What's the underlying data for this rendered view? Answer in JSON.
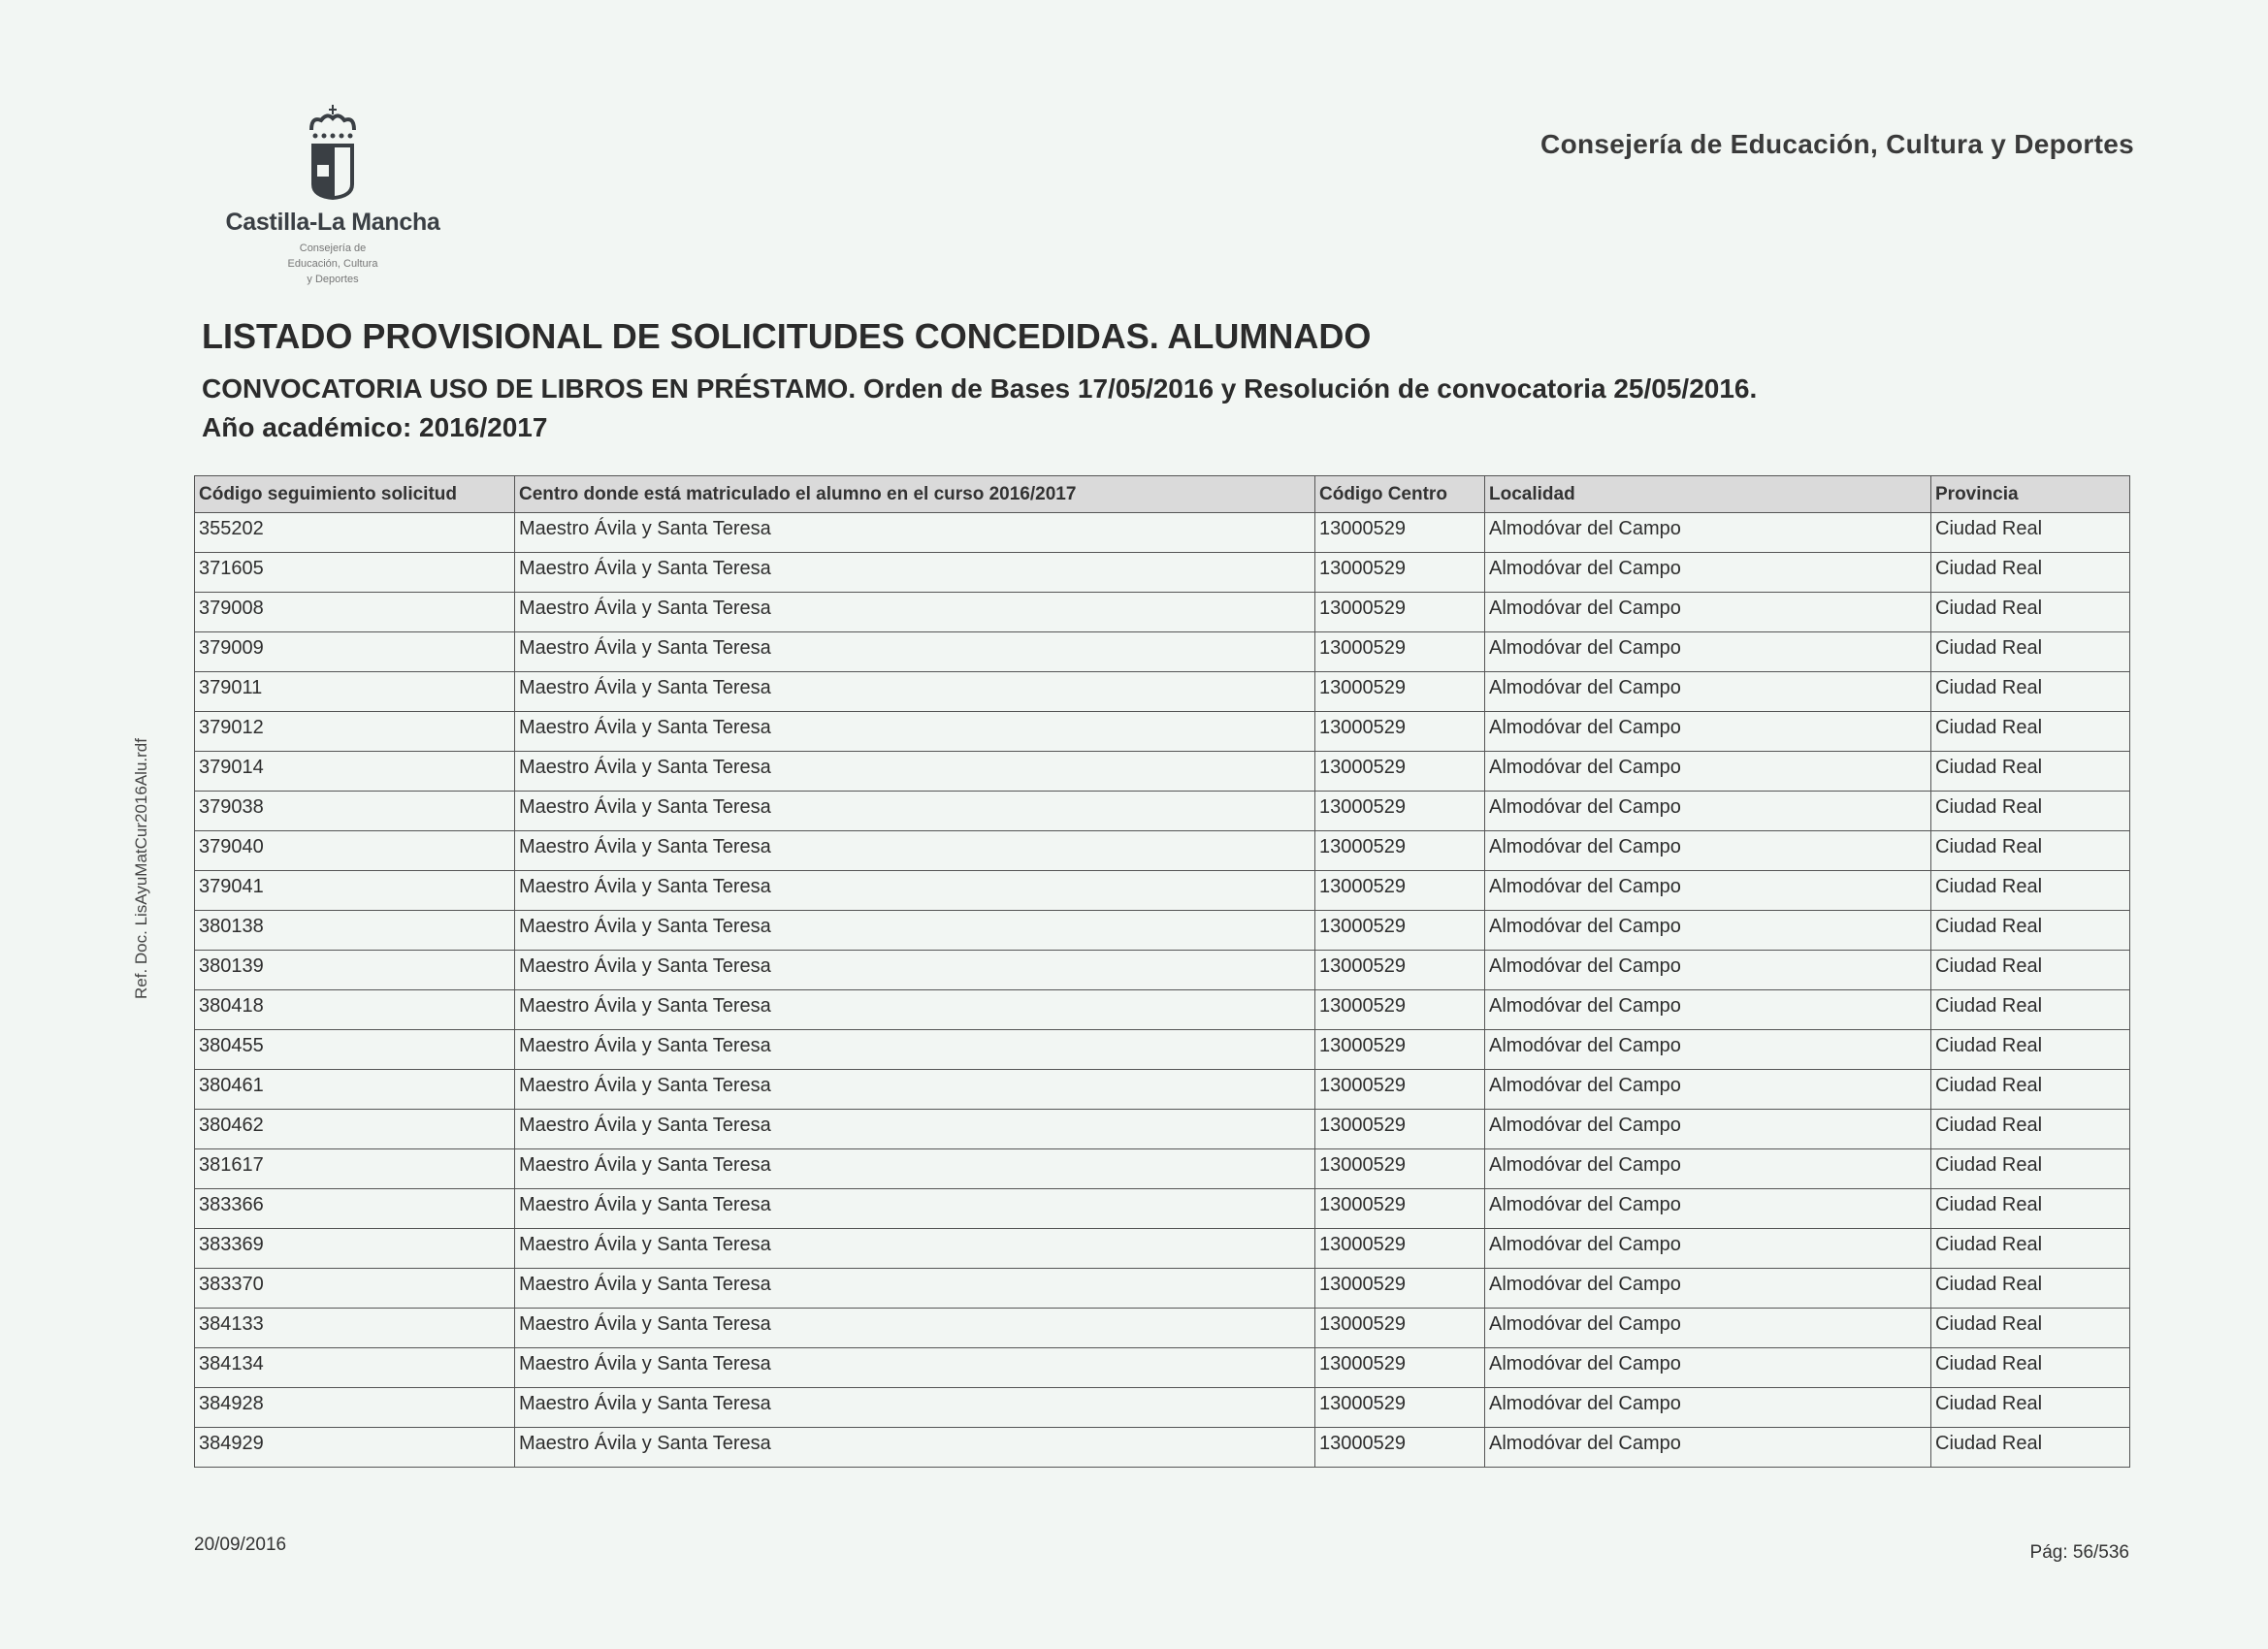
{
  "logo": {
    "name": "Castilla-La Mancha",
    "subtitle_lines": [
      "Consejería de",
      "Educación, Cultura",
      "y Deportes"
    ]
  },
  "header": {
    "department": "Consejería de Educación, Cultura y Deportes"
  },
  "document": {
    "title": "LISTADO PROVISIONAL DE SOLICITUDES CONCEDIDAS. ALUMNADO",
    "subtitle": "CONVOCATORIA USO DE LIBROS EN PRÉSTAMO. Orden de Bases 17/05/2016 y Resolución de convocatoria 25/05/2016.",
    "academic_year": "Año académico: 2016/2017"
  },
  "side_reference": "Ref. Doc. LisAyuMatCur2016Alu.rdf",
  "table": {
    "columns": [
      "Código seguimiento solicitud",
      "Centro donde está matriculado el alumno en el curso 2016/2017",
      "Código Centro",
      "Localidad",
      "Provincia"
    ],
    "rows": [
      [
        "355202",
        "Maestro Ávila y Santa Teresa",
        "13000529",
        "Almodóvar del Campo",
        "Ciudad Real"
      ],
      [
        "371605",
        "Maestro Ávila y Santa Teresa",
        "13000529",
        "Almodóvar del Campo",
        "Ciudad Real"
      ],
      [
        "379008",
        "Maestro Ávila y Santa Teresa",
        "13000529",
        "Almodóvar del Campo",
        "Ciudad Real"
      ],
      [
        "379009",
        "Maestro Ávila y Santa Teresa",
        "13000529",
        "Almodóvar del Campo",
        "Ciudad Real"
      ],
      [
        "379011",
        "Maestro Ávila y Santa Teresa",
        "13000529",
        "Almodóvar del Campo",
        "Ciudad Real"
      ],
      [
        "379012",
        "Maestro Ávila y Santa Teresa",
        "13000529",
        "Almodóvar del Campo",
        "Ciudad Real"
      ],
      [
        "379014",
        "Maestro Ávila y Santa Teresa",
        "13000529",
        "Almodóvar del Campo",
        "Ciudad Real"
      ],
      [
        "379038",
        "Maestro Ávila y Santa Teresa",
        "13000529",
        "Almodóvar del Campo",
        "Ciudad Real"
      ],
      [
        "379040",
        "Maestro Ávila y Santa Teresa",
        "13000529",
        "Almodóvar del Campo",
        "Ciudad Real"
      ],
      [
        "379041",
        "Maestro Ávila y Santa Teresa",
        "13000529",
        "Almodóvar del Campo",
        "Ciudad Real"
      ],
      [
        "380138",
        "Maestro Ávila y Santa Teresa",
        "13000529",
        "Almodóvar del Campo",
        "Ciudad Real"
      ],
      [
        "380139",
        "Maestro Ávila y Santa Teresa",
        "13000529",
        "Almodóvar del Campo",
        "Ciudad Real"
      ],
      [
        "380418",
        "Maestro Ávila y Santa Teresa",
        "13000529",
        "Almodóvar del Campo",
        "Ciudad Real"
      ],
      [
        "380455",
        "Maestro Ávila y Santa Teresa",
        "13000529",
        "Almodóvar del Campo",
        "Ciudad Real"
      ],
      [
        "380461",
        "Maestro Ávila y Santa Teresa",
        "13000529",
        "Almodóvar del Campo",
        "Ciudad Real"
      ],
      [
        "380462",
        "Maestro Ávila y Santa Teresa",
        "13000529",
        "Almodóvar del Campo",
        "Ciudad Real"
      ],
      [
        "381617",
        "Maestro Ávila y Santa Teresa",
        "13000529",
        "Almodóvar del Campo",
        "Ciudad Real"
      ],
      [
        "383366",
        "Maestro Ávila y Santa Teresa",
        "13000529",
        "Almodóvar del Campo",
        "Ciudad Real"
      ],
      [
        "383369",
        "Maestro Ávila y Santa Teresa",
        "13000529",
        "Almodóvar del Campo",
        "Ciudad Real"
      ],
      [
        "383370",
        "Maestro Ávila y Santa Teresa",
        "13000529",
        "Almodóvar del Campo",
        "Ciudad Real"
      ],
      [
        "384133",
        "Maestro Ávila y Santa Teresa",
        "13000529",
        "Almodóvar del Campo",
        "Ciudad Real"
      ],
      [
        "384134",
        "Maestro Ávila y Santa Teresa",
        "13000529",
        "Almodóvar del Campo",
        "Ciudad Real"
      ],
      [
        "384928",
        "Maestro Ávila y Santa Teresa",
        "13000529",
        "Almodóvar del Campo",
        "Ciudad Real"
      ],
      [
        "384929",
        "Maestro Ávila y Santa Teresa",
        "13000529",
        "Almodóvar del Campo",
        "Ciudad Real"
      ]
    ]
  },
  "footer": {
    "date": "20/09/2016",
    "page": "Pág: 56/536"
  }
}
